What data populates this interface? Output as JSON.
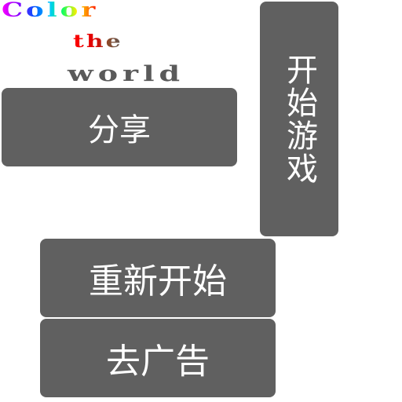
{
  "logo": {
    "line1": "Color",
    "line2": "the",
    "line3": "world"
  },
  "buttons": {
    "share": "分享",
    "start": "开始游戏",
    "restart": "重新开始",
    "remove_ads": "去广告"
  },
  "colors": {
    "button_bg": "#606060",
    "button_text": "#ffffff",
    "world_text": "#5a5a5a"
  }
}
